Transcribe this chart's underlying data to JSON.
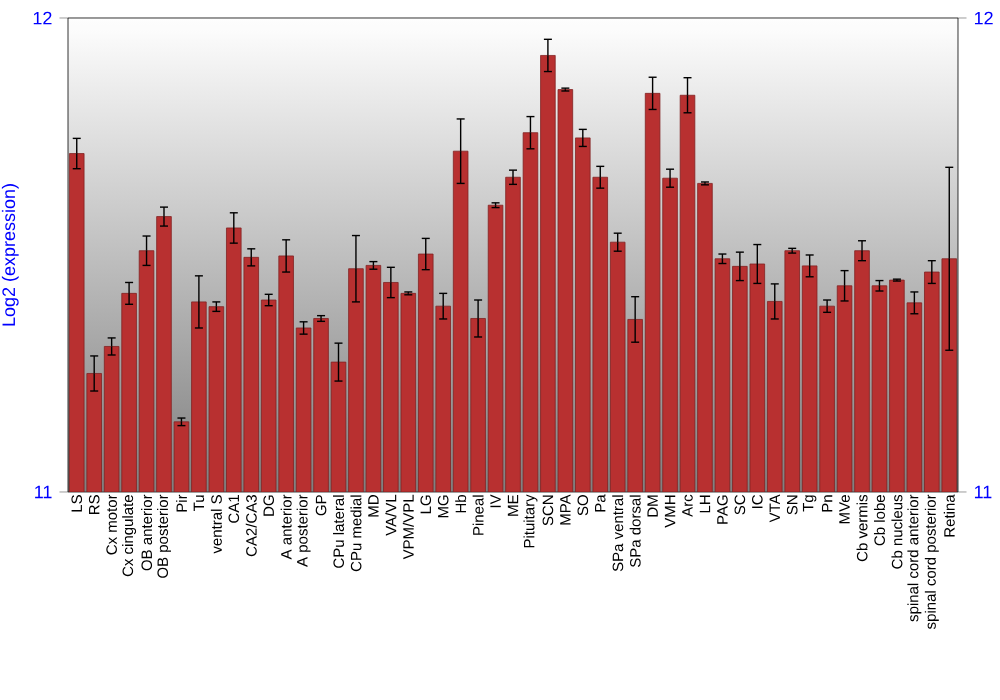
{
  "chart_data": {
    "type": "bar",
    "ylabel": "Log2 (expression)",
    "color": "#b83030",
    "categories": [
      "LS",
      "RS",
      "Cx motor",
      "Cx cingulate",
      "OB anterior",
      "OB posterior",
      "Pir",
      "Tu",
      "ventral S",
      "CA1",
      "CA2/CA3",
      "DG",
      "A anterior",
      "A posterior",
      "GP",
      "CPu lateral",
      "CPu medial",
      "MD",
      "VA/VL",
      "VPM/VPL",
      "LG",
      "MG",
      "Hb",
      "Pineal",
      "IV",
      "ME",
      "Pituitary",
      "SCN",
      "MPA",
      "SO",
      "Pa",
      "SPa ventral",
      "SPa dorsal",
      "DM",
      "VMH",
      "Arc",
      "LH",
      "PAG",
      "SC",
      "IC",
      "VTA",
      "SN",
      "Tg",
      "Pn",
      "MVe",
      "Cb vermis",
      "Cb lobe",
      "Cb nucleus",
      "spinal cord anterior",
      "spinal cord posterior",
      "Retina"
    ],
    "values": [
      11.714,
      11.25,
      11.307,
      11.419,
      11.509,
      11.581,
      11.148,
      11.401,
      11.391,
      11.557,
      11.495,
      11.405,
      11.498,
      11.346,
      11.366,
      11.274,
      11.471,
      11.478,
      11.442,
      11.419,
      11.502,
      11.392,
      11.719,
      11.366,
      11.605,
      11.664,
      11.758,
      11.921,
      11.849,
      11.747,
      11.664,
      11.527,
      11.364,
      11.841,
      11.662,
      11.837,
      11.651,
      11.492,
      11.476,
      11.481,
      11.402,
      11.509,
      11.477,
      11.392,
      11.435,
      11.509,
      11.435,
      11.447,
      11.399,
      11.464,
      11.492
    ],
    "errors": [
      0.032,
      0.037,
      0.018,
      0.023,
      0.031,
      0.02,
      0.008,
      0.055,
      0.01,
      0.032,
      0.018,
      0.012,
      0.034,
      0.013,
      0.006,
      0.04,
      0.07,
      0.008,
      0.032,
      0.003,
      0.033,
      0.027,
      0.068,
      0.039,
      0.005,
      0.015,
      0.034,
      0.034,
      0.003,
      0.018,
      0.023,
      0.019,
      0.048,
      0.034,
      0.019,
      0.037,
      0.003,
      0.01,
      0.03,
      0.041,
      0.037,
      0.005,
      0.023,
      0.013,
      0.032,
      0.021,
      0.011,
      0.002,
      0.023,
      0.024,
      0.193
    ],
    "ylim": [
      11,
      12
    ],
    "yticks": [
      11,
      12
    ],
    "y2lim": [
      11,
      12
    ],
    "y2ticks": [
      11,
      12
    ]
  }
}
